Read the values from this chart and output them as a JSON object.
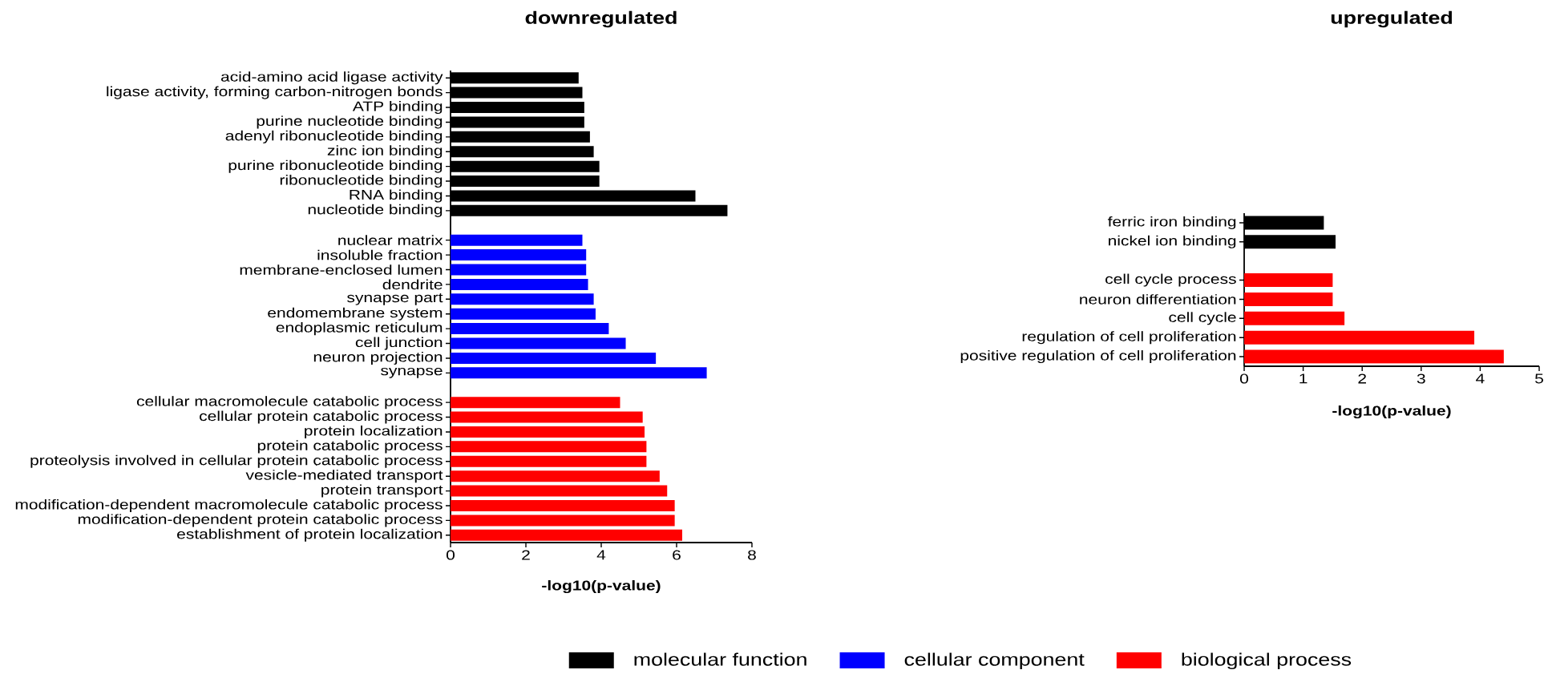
{
  "chart_data": [
    {
      "type": "bar",
      "orientation": "horizontal",
      "title": "downregulated",
      "xlabel": "-log10(p-value)",
      "categories": [
        "acid-amino acid ligase activity",
        "ligase activity, forming carbon-nitrogen bonds",
        "ATP binding",
        "purine nucleotide binding",
        "adenyl ribonucleotide binding",
        "zinc ion binding",
        "purine ribonucleotide binding",
        "ribonucleotide binding",
        "RNA binding",
        "nucleotide binding",
        null,
        "nuclear matrix",
        "insoluble fraction",
        "membrane-enclosed lumen",
        "dendrite",
        "synapse part",
        "endomembrane system",
        "endoplasmic reticulum",
        "cell junction",
        "neuron projection",
        "synapse",
        null,
        "cellular macromolecule catabolic process",
        "cellular protein catabolic process",
        "protein localization",
        "protein catabolic process",
        "proteolysis involved in cellular protein catabolic process",
        "vesicle-mediated transport",
        "protein transport",
        "modification-dependent macromolecule catabolic process",
        "modification-dependent protein catabolic process",
        "establishment of protein localization"
      ],
      "series": [
        {
          "name": "molecular function",
          "color": "#000000",
          "values": [
            3.4,
            3.5,
            3.55,
            3.55,
            3.7,
            3.8,
            3.95,
            3.95,
            6.5,
            7.35,
            null,
            null,
            null,
            null,
            null,
            null,
            null,
            null,
            null,
            null,
            null,
            null,
            null,
            null,
            null,
            null,
            null,
            null,
            null,
            null,
            null,
            null
          ]
        },
        {
          "name": "cellular component",
          "color": "#0000ff",
          "values": [
            null,
            null,
            null,
            null,
            null,
            null,
            null,
            null,
            null,
            null,
            null,
            3.5,
            3.6,
            3.6,
            3.65,
            3.8,
            3.85,
            4.2,
            4.65,
            5.45,
            6.8,
            null,
            null,
            null,
            null,
            null,
            null,
            null,
            null,
            null,
            null,
            null
          ]
        },
        {
          "name": "biological process",
          "color": "#ff0000",
          "values": [
            null,
            null,
            null,
            null,
            null,
            null,
            null,
            null,
            null,
            null,
            null,
            null,
            null,
            null,
            null,
            null,
            null,
            null,
            null,
            null,
            null,
            null,
            4.5,
            5.1,
            5.15,
            5.2,
            5.2,
            5.55,
            5.75,
            5.95,
            5.95,
            6.15
          ]
        }
      ],
      "xlim": [
        0,
        8
      ],
      "xticks": [
        0,
        2,
        4,
        6,
        8
      ],
      "legend": "bottom"
    },
    {
      "type": "bar",
      "orientation": "horizontal",
      "title": "upregulated",
      "xlabel": "-log10(p-value)",
      "categories": [
        "ferric iron binding",
        "nickel ion binding",
        null,
        "cell cycle process",
        "neuron differentiation",
        "cell cycle",
        "regulation of cell proliferation",
        "positive regulation of cell proliferation"
      ],
      "series": [
        {
          "color": "#000000",
          "values": [
            1.35,
            1.55,
            null,
            null,
            null,
            null,
            null,
            null
          ]
        },
        {
          "color": "#ff0000",
          "values": [
            null,
            null,
            null,
            1.5,
            1.5,
            1.7,
            3.9,
            4.4
          ]
        }
      ],
      "xlim": [
        0,
        5
      ],
      "xticks": [
        0,
        1,
        2,
        3,
        4,
        5
      ]
    }
  ]
}
